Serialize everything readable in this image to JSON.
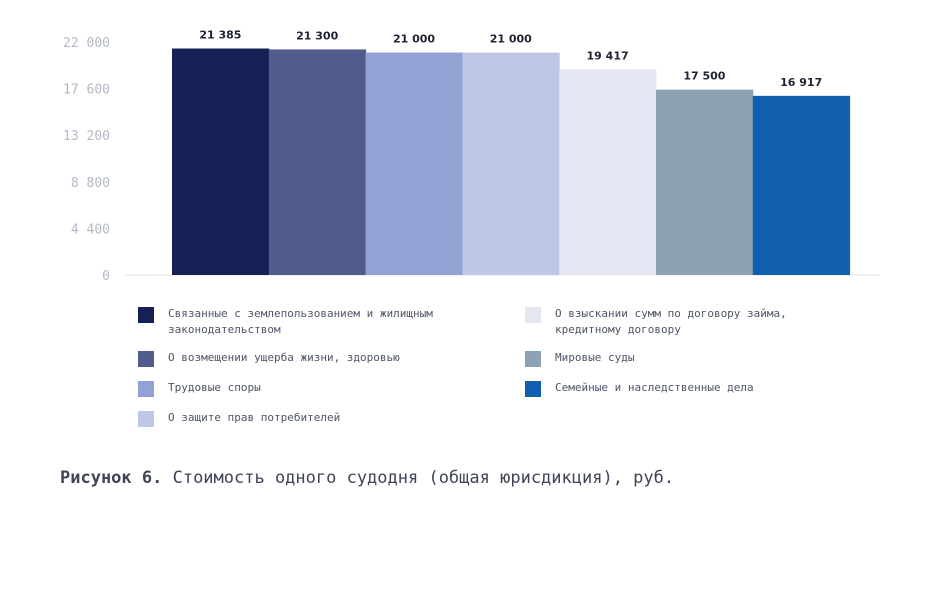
{
  "chart_data": {
    "type": "bar",
    "ylim": [
      0,
      22000
    ],
    "yticks": [
      0,
      4400,
      8800,
      13200,
      17600,
      22000
    ],
    "ytick_labels": [
      "0",
      "4 400",
      "8 800",
      "13 200",
      "17 600",
      "22 000"
    ],
    "series": [
      {
        "name": "Связанные с землепользованием и жилищным законодательством",
        "value": 21385,
        "label": "21 385",
        "color": "#162055"
      },
      {
        "name": "О возмещении ущерба жизни, здоровью",
        "value": 21300,
        "label": "21 300",
        "color": "#505d8c"
      },
      {
        "name": "Трудовые споры",
        "value": 21000,
        "label": "21 000",
        "color": "#90a3d4"
      },
      {
        "name": "О защите прав потребителей",
        "value": 21000,
        "label": "21 000",
        "color": "#bdc7e6"
      },
      {
        "name": "О взыскании сумм по договору займа, кредитному договору",
        "value": 19417,
        "label": "19 417",
        "color": "#e4e7f2"
      },
      {
        "name": "Мировые суды",
        "value": 17500,
        "label": "17 500",
        "color": "#8ea2b5"
      },
      {
        "name": "Семейные и наследственные дела",
        "value": 16917,
        "label": "16 917",
        "color": "#115faf"
      }
    ],
    "grid": false,
    "legend_position": "bottom"
  },
  "caption": {
    "figure": "Рисунок 6.",
    "text": " Стоимость одного судодня (общая юрисдикция), руб."
  }
}
